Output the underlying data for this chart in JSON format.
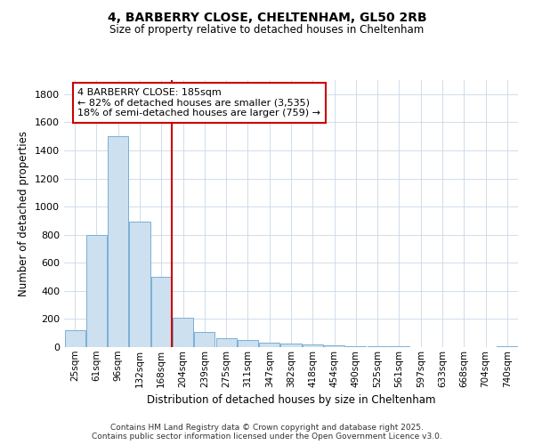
{
  "title1": "4, BARBERRY CLOSE, CHELTENHAM, GL50 2RB",
  "title2": "Size of property relative to detached houses in Cheltenham",
  "xlabel": "Distribution of detached houses by size in Cheltenham",
  "ylabel": "Number of detached properties",
  "categories": [
    "25sqm",
    "61sqm",
    "96sqm",
    "132sqm",
    "168sqm",
    "204sqm",
    "239sqm",
    "275sqm",
    "311sqm",
    "347sqm",
    "382sqm",
    "418sqm",
    "454sqm",
    "490sqm",
    "525sqm",
    "561sqm",
    "597sqm",
    "633sqm",
    "668sqm",
    "704sqm",
    "740sqm"
  ],
  "values": [
    120,
    800,
    1500,
    890,
    500,
    210,
    110,
    65,
    48,
    30,
    25,
    20,
    10,
    5,
    4,
    4,
    3,
    3,
    3,
    3,
    8
  ],
  "bar_color": "#cce0f0",
  "bar_edge_color": "#7ab0d4",
  "bar_linewidth": 0.7,
  "vline_x": 4.5,
  "vline_color": "#cc0000",
  "vline_label": "4 BARBERRY CLOSE: 185sqm",
  "annotation_line1": "← 82% of detached houses are smaller (3,535)",
  "annotation_line2": "18% of semi-detached houses are larger (759) →",
  "annotation_box_facecolor": "#ffffff",
  "annotation_box_edgecolor": "#cc0000",
  "ylim": [
    0,
    1900
  ],
  "yticks": [
    0,
    200,
    400,
    600,
    800,
    1000,
    1200,
    1400,
    1600,
    1800
  ],
  "background_color": "#ffffff",
  "plot_bg_color": "#ffffff",
  "grid_color": "#c8d8e8",
  "footer1": "Contains HM Land Registry data © Crown copyright and database right 2025.",
  "footer2": "Contains public sector information licensed under the Open Government Licence v3.0."
}
